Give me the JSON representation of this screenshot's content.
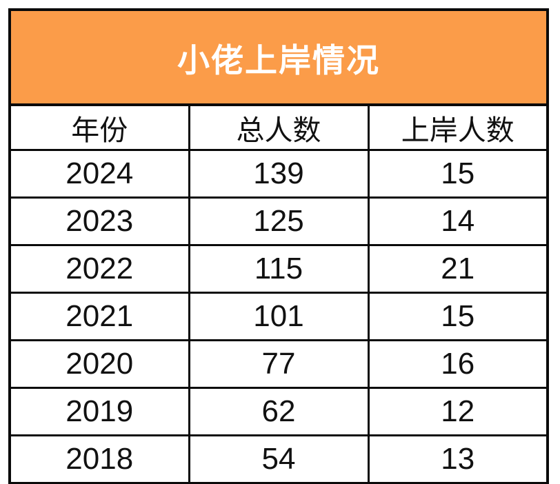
{
  "title": "小佬上岸情况",
  "colors": {
    "banner_bg": "#FB9C49",
    "banner_text": "#FFFFFF",
    "border": "#0A0A0A",
    "cell_bg": "#FFFFFF",
    "cell_text": "#111111"
  },
  "table": {
    "headers": [
      "年份",
      "总人数",
      "上岸人数"
    ],
    "rows": [
      [
        "2024",
        "139",
        "15"
      ],
      [
        "2023",
        "125",
        "14"
      ],
      [
        "2022",
        "115",
        "21"
      ],
      [
        "2021",
        "101",
        "15"
      ],
      [
        "2020",
        "77",
        "16"
      ],
      [
        "2019",
        "62",
        "12"
      ],
      [
        "2018",
        "54",
        "13"
      ]
    ]
  },
  "chart_data": {
    "type": "table",
    "title": "小佬上岸情况",
    "columns": [
      "年份",
      "总人数",
      "上岸人数"
    ],
    "rows": [
      [
        2024,
        139,
        15
      ],
      [
        2023,
        125,
        14
      ],
      [
        2022,
        115,
        21
      ],
      [
        2021,
        101,
        15
      ],
      [
        2020,
        77,
        16
      ],
      [
        2019,
        62,
        12
      ],
      [
        2018,
        54,
        13
      ]
    ]
  }
}
